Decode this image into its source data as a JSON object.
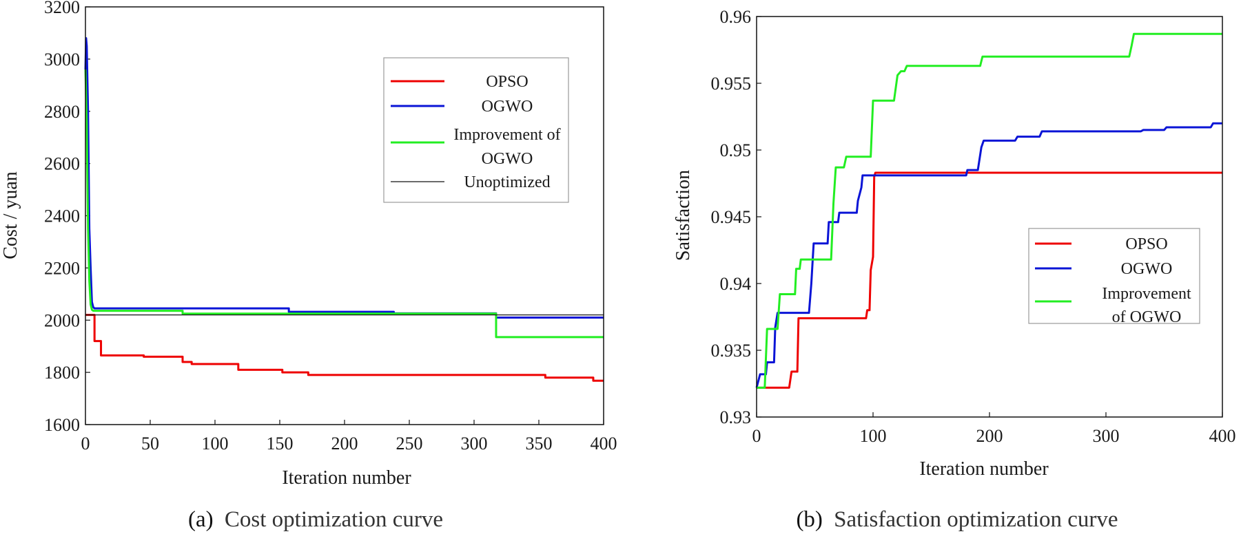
{
  "chart_data": [
    {
      "id": "cost",
      "type": "line",
      "title": "",
      "xlabel": "Iteration number",
      "ylabel": "Cost / yuan",
      "xlim": [
        0,
        400
      ],
      "ylim": [
        1600,
        3200
      ],
      "xticks": [
        0,
        50,
        100,
        150,
        200,
        250,
        300,
        350,
        400
      ],
      "yticks": [
        1600,
        1800,
        2000,
        2200,
        2400,
        2600,
        2800,
        3000,
        3200
      ],
      "legend_position": "upper-right",
      "caption_tag": "(a)",
      "caption": "Cost optimization curve",
      "series": [
        {
          "name": "OPSO",
          "color": "#ee0000",
          "legend_lines": [
            "OPSO"
          ],
          "points": [
            [
              0,
              2020
            ],
            [
              7,
              2020
            ],
            [
              7,
              1920
            ],
            [
              12,
              1920
            ],
            [
              12,
              1865
            ],
            [
              45,
              1865
            ],
            [
              45,
              1860
            ],
            [
              75,
              1860
            ],
            [
              75,
              1840
            ],
            [
              82,
              1840
            ],
            [
              82,
              1832
            ],
            [
              118,
              1832
            ],
            [
              118,
              1810
            ],
            [
              152,
              1810
            ],
            [
              152,
              1800
            ],
            [
              172,
              1800
            ],
            [
              172,
              1790
            ],
            [
              355,
              1790
            ],
            [
              355,
              1780
            ],
            [
              392,
              1780
            ],
            [
              392,
              1768
            ],
            [
              400,
              1768
            ]
          ]
        },
        {
          "name": "OGWO",
          "color": "#0a14d6",
          "legend_lines": [
            "OGWO"
          ],
          "points": [
            [
              0,
              2960
            ],
            [
              0.5,
              3080
            ],
            [
              1,
              3050
            ],
            [
              2,
              2800
            ],
            [
              3,
              2350
            ],
            [
              4,
              2200
            ],
            [
              5,
              2070
            ],
            [
              6,
              2050
            ],
            [
              7,
              2045
            ],
            [
              157,
              2045
            ],
            [
              157,
              2032
            ],
            [
              238,
              2032
            ],
            [
              238,
              2026
            ],
            [
              317,
              2026
            ],
            [
              317,
              2010
            ],
            [
              400,
              2010
            ]
          ]
        },
        {
          "name": "Improvement of OGWO",
          "color": "#22ee22",
          "legend_lines": [
            "Improvement of",
            "OGWO"
          ],
          "points": [
            [
              0,
              2960
            ],
            [
              1,
              2750
            ],
            [
              2,
              2350
            ],
            [
              3,
              2150
            ],
            [
              4,
              2060
            ],
            [
              5,
              2040
            ],
            [
              6,
              2036
            ],
            [
              75,
              2036
            ],
            [
              75,
              2025
            ],
            [
              317,
              2025
            ],
            [
              317,
              1935
            ],
            [
              400,
              1935
            ]
          ]
        },
        {
          "name": "Unoptimized",
          "color": "#111111",
          "legend_lines": [
            "Unoptimized"
          ],
          "thin": true,
          "points": [
            [
              0,
              2020
            ],
            [
              400,
              2020
            ]
          ]
        }
      ]
    },
    {
      "id": "satisfaction",
      "type": "line",
      "title": "",
      "xlabel": "Iteration number",
      "ylabel": "Satisfaction",
      "xlim": [
        0,
        400
      ],
      "ylim": [
        0.93,
        0.96
      ],
      "xticks": [
        0,
        100,
        200,
        300,
        400
      ],
      "yticks": [
        0.93,
        0.935,
        0.94,
        0.945,
        0.95,
        0.955,
        0.96
      ],
      "legend_position": "lower-right",
      "caption_tag": "(b)",
      "caption": "Satisfaction optimization curve",
      "series": [
        {
          "name": "OPSO",
          "color": "#ee0000",
          "legend_lines": [
            "OPSO"
          ],
          "points": [
            [
              0,
              0.9322
            ],
            [
              28,
              0.9322
            ],
            [
              30,
              0.9334
            ],
            [
              35,
              0.9334
            ],
            [
              36,
              0.9374
            ],
            [
              94,
              0.9374
            ],
            [
              95,
              0.938
            ],
            [
              97,
              0.938
            ],
            [
              98,
              0.941
            ],
            [
              100,
              0.942
            ],
            [
              101,
              0.948
            ],
            [
              102,
              0.9483
            ],
            [
              400,
              0.9483
            ]
          ]
        },
        {
          "name": "OGWO",
          "color": "#0a14d6",
          "legend_lines": [
            "OGWO"
          ],
          "points": [
            [
              0,
              0.9322
            ],
            [
              3,
              0.9332
            ],
            [
              8,
              0.9332
            ],
            [
              9,
              0.9341
            ],
            [
              15,
              0.9341
            ],
            [
              16,
              0.9367
            ],
            [
              18,
              0.9378
            ],
            [
              45,
              0.9378
            ],
            [
              47,
              0.94
            ],
            [
              49,
              0.943
            ],
            [
              61,
              0.943
            ],
            [
              62,
              0.9446
            ],
            [
              70,
              0.9446
            ],
            [
              71,
              0.9453
            ],
            [
              86,
              0.9453
            ],
            [
              87,
              0.9462
            ],
            [
              90,
              0.9472
            ],
            [
              91,
              0.9481
            ],
            [
              180,
              0.9481
            ],
            [
              181,
              0.9485
            ],
            [
              190,
              0.9485
            ],
            [
              193,
              0.9502
            ],
            [
              195,
              0.9507
            ],
            [
              222,
              0.9507
            ],
            [
              224,
              0.951
            ],
            [
              243,
              0.951
            ],
            [
              245,
              0.9514
            ],
            [
              330,
              0.9514
            ],
            [
              332,
              0.9515
            ],
            [
              350,
              0.9515
            ],
            [
              352,
              0.9517
            ],
            [
              390,
              0.9517
            ],
            [
              392,
              0.952
            ],
            [
              400,
              0.952
            ]
          ]
        },
        {
          "name": "Improvement of OGWO",
          "color": "#22ee22",
          "legend_lines": [
            "Improvement",
            "of OGWO"
          ],
          "points": [
            [
              0,
              0.9322
            ],
            [
              7,
              0.9322
            ],
            [
              9,
              0.9366
            ],
            [
              18,
              0.9366
            ],
            [
              20,
              0.9392
            ],
            [
              33,
              0.9392
            ],
            [
              34,
              0.9411
            ],
            [
              37,
              0.9411
            ],
            [
              38,
              0.9418
            ],
            [
              64,
              0.9418
            ],
            [
              66,
              0.946
            ],
            [
              68,
              0.9487
            ],
            [
              75,
              0.9487
            ],
            [
              77,
              0.9495
            ],
            [
              98,
              0.9495
            ],
            [
              100,
              0.9537
            ],
            [
              118,
              0.9537
            ],
            [
              121,
              0.9556
            ],
            [
              124,
              0.9559
            ],
            [
              127,
              0.9559
            ],
            [
              129,
              0.9563
            ],
            [
              192,
              0.9563
            ],
            [
              194,
              0.957
            ],
            [
              320,
              0.957
            ],
            [
              322,
              0.9578
            ],
            [
              324,
              0.9587
            ],
            [
              400,
              0.9587
            ]
          ]
        }
      ]
    }
  ]
}
